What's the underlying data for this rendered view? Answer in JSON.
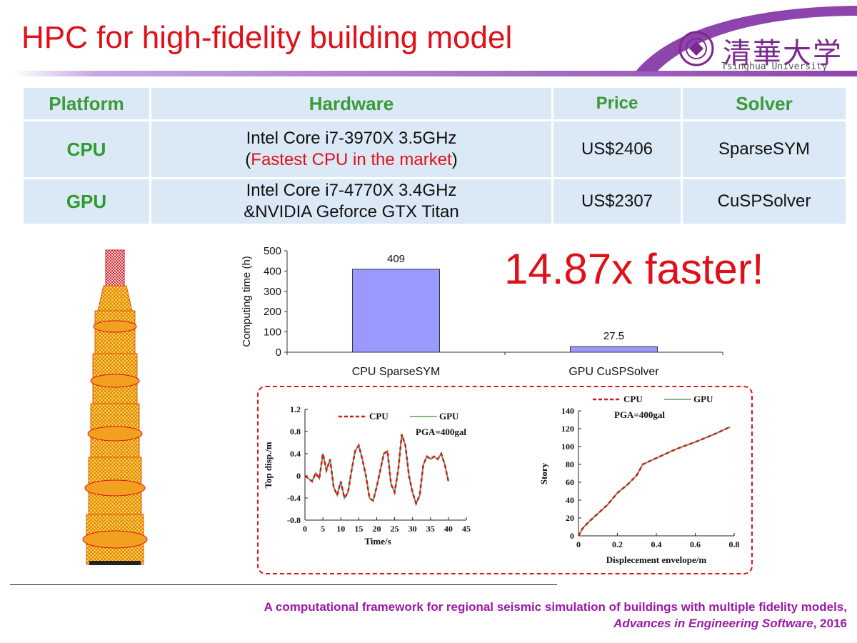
{
  "slide": {
    "title": "HPC for high-fidelity building model",
    "logo": {
      "chinese": "清華大学",
      "english": "Tsinghua University"
    },
    "speedup": "14.87x faster!",
    "footer": {
      "line1": "A computational framework for regional seismic simulation of buildings with multiple fidelity models,",
      "journal": "Advances in Engineering Software",
      "year": ", 2016"
    },
    "colors": {
      "title": "#e0101a",
      "accent_purple": "#8e44ad",
      "header_green": "#3a9b3a",
      "cell_bg": "#dbe8f5"
    }
  },
  "table": {
    "headers": [
      "Platform",
      "Hardware",
      "Price",
      "Solver"
    ],
    "rows": [
      {
        "platform": "CPU",
        "hardware_line1": "Intel Core i7-3970X 3.5GHz",
        "hardware_line2_open": "(",
        "hardware_line2_red": "Fastest CPU in the market",
        "hardware_line2_close": ")",
        "price": "US$2406",
        "solver": "SparseSYM"
      },
      {
        "platform": "GPU",
        "hardware_line1": "Intel Core i7-4770X 3.4GHz",
        "hardware_line2": "&NVIDIA Geforce GTX Titan",
        "price": "US$2307",
        "solver": "CuSPSolver"
      }
    ]
  },
  "chart_data": [
    {
      "type": "bar",
      "categories": [
        "CPU SparseSYM",
        "GPU CuSPSolver"
      ],
      "values": [
        409,
        27.5
      ],
      "value_labels": [
        "409",
        "27.5"
      ],
      "ylabel": "Computing time (h)",
      "ylim": [
        0,
        500
      ],
      "yticks": [
        0,
        100,
        200,
        300,
        400,
        500
      ],
      "bar_color": "#9999ff"
    },
    {
      "type": "line",
      "xlabel": "Time/s",
      "ylabel": "Top disp./m",
      "annotation": "PGA=400gal",
      "xlim": [
        0,
        45
      ],
      "ylim": [
        -0.8,
        1.2
      ],
      "xticks": [
        0,
        5,
        10,
        15,
        20,
        25,
        30,
        35,
        40,
        45
      ],
      "yticks": [
        -0.8,
        -0.4,
        0,
        0.4,
        0.8,
        1.2
      ],
      "ytick_labels": [
        "-0.8",
        "-0.4",
        "0",
        "0.4",
        "0.8",
        "1.2"
      ],
      "legend": "top",
      "series": [
        {
          "name": "CPU",
          "color": "#e0101a",
          "style": "dashed"
        },
        {
          "name": "GPU",
          "color": "#5aa05a",
          "style": "solid"
        }
      ],
      "x": [
        0,
        1,
        2,
        3,
        4,
        5,
        6,
        7,
        8,
        9,
        10,
        11,
        12,
        13,
        14,
        15,
        16,
        17,
        18,
        19,
        20,
        21,
        22,
        23,
        24,
        25,
        26,
        27,
        28,
        29,
        30,
        31,
        32,
        33,
        34,
        35,
        36,
        37,
        38,
        39,
        40
      ],
      "y": [
        0,
        -0.05,
        -0.1,
        0.05,
        -0.05,
        0.4,
        0.1,
        0.3,
        -0.2,
        -0.35,
        -0.1,
        -0.4,
        -0.3,
        0.1,
        0.45,
        0.55,
        0.3,
        0.0,
        -0.4,
        -0.45,
        -0.2,
        0.1,
        0.4,
        0.45,
        -0.15,
        -0.3,
        0.1,
        0.75,
        0.55,
        0.0,
        -0.3,
        -0.5,
        -0.35,
        0.2,
        0.35,
        0.3,
        0.35,
        0.3,
        0.4,
        0.2,
        -0.1
      ]
    },
    {
      "type": "line",
      "xlabel": "Displecement envelope/m",
      "ylabel": "Story",
      "annotation": "PGA=400gal",
      "xlim": [
        0,
        0.8
      ],
      "ylim": [
        0,
        140
      ],
      "xticks": [
        0,
        0.2,
        0.4,
        0.6,
        0.8
      ],
      "yticks": [
        0,
        20,
        40,
        60,
        80,
        100,
        120,
        140
      ],
      "legend": "top",
      "series": [
        {
          "name": "CPU",
          "color": "#e0101a",
          "style": "dashed"
        },
        {
          "name": "GPU",
          "color": "#5aa05a",
          "style": "solid"
        }
      ],
      "x": [
        0,
        0.02,
        0.05,
        0.1,
        0.15,
        0.2,
        0.25,
        0.3,
        0.33,
        0.4,
        0.5,
        0.6,
        0.7,
        0.78
      ],
      "y": [
        0,
        8,
        15,
        25,
        35,
        48,
        57,
        68,
        80,
        87,
        97,
        105,
        114,
        122
      ]
    }
  ]
}
